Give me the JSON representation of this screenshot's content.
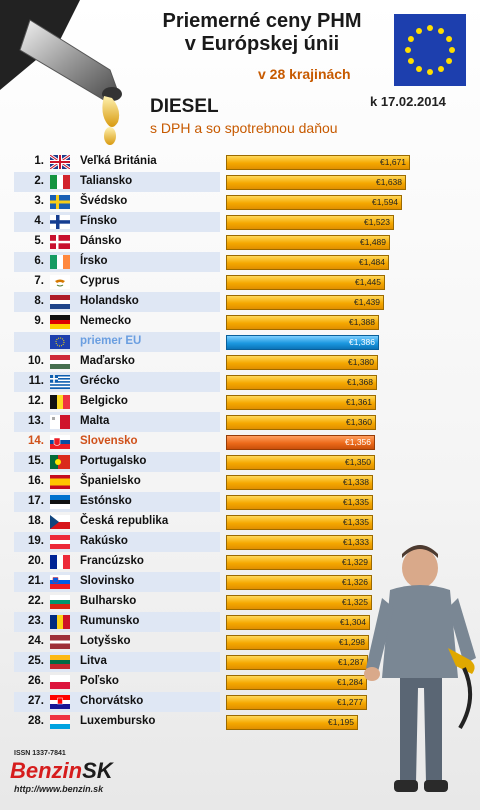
{
  "header": {
    "title_line1": "Priemerné ceny PHM",
    "title_line2": "v Európskej únii",
    "countries_note": "v 28 krajinách",
    "date": "k 17.02.2014",
    "fuel": "DIESEL",
    "fuel_note": "s DPH a so spotrebnou daňou"
  },
  "chart_data": {
    "type": "bar",
    "orientation": "horizontal",
    "xlim": [
      0,
      1.671
    ],
    "rows": [
      {
        "rank": "1.",
        "country": "Veľká Británia",
        "value": 1.671,
        "label": "€1,671",
        "flag": "uk-flag-icon"
      },
      {
        "rank": "2.",
        "country": "Taliansko",
        "value": 1.638,
        "label": "€1,638",
        "flag": "italy-flag-icon"
      },
      {
        "rank": "3.",
        "country": "Švédsko",
        "value": 1.594,
        "label": "€1,594",
        "flag": "sweden-flag-icon"
      },
      {
        "rank": "4.",
        "country": "Fínsko",
        "value": 1.523,
        "label": "€1,523",
        "flag": "finland-flag-icon"
      },
      {
        "rank": "5.",
        "country": "Dánsko",
        "value": 1.489,
        "label": "€1,489",
        "flag": "denmark-flag-icon"
      },
      {
        "rank": "6.",
        "country": "Írsko",
        "value": 1.484,
        "label": "€1,484",
        "flag": "ireland-flag-icon"
      },
      {
        "rank": "7.",
        "country": "Cyprus",
        "value": 1.445,
        "label": "€1,445",
        "flag": "cyprus-flag-icon"
      },
      {
        "rank": "8.",
        "country": "Holandsko",
        "value": 1.439,
        "label": "€1,439",
        "flag": "netherlands-flag-icon"
      },
      {
        "rank": "9.",
        "country": "Nemecko",
        "value": 1.388,
        "label": "€1,388",
        "flag": "germany-flag-icon"
      },
      {
        "rank": "",
        "country": "priemer EU",
        "value": 1.386,
        "label": "€1,386",
        "flag": "eu-flag-icon",
        "highlight": "eu"
      },
      {
        "rank": "10.",
        "country": "Maďarsko",
        "value": 1.38,
        "label": "€1,380",
        "flag": "hungary-flag-icon"
      },
      {
        "rank": "11.",
        "country": "Grécko",
        "value": 1.368,
        "label": "€1,368",
        "flag": "greece-flag-icon"
      },
      {
        "rank": "12.",
        "country": "Belgicko",
        "value": 1.361,
        "label": "€1,361",
        "flag": "belgium-flag-icon"
      },
      {
        "rank": "13.",
        "country": "Malta",
        "value": 1.36,
        "label": "€1,360",
        "flag": "malta-flag-icon"
      },
      {
        "rank": "14.",
        "country": "Slovensko",
        "value": 1.356,
        "label": "€1,356",
        "flag": "slovakia-flag-icon",
        "highlight": "sk"
      },
      {
        "rank": "15.",
        "country": "Portugalsko",
        "value": 1.35,
        "label": "€1,350",
        "flag": "portugal-flag-icon"
      },
      {
        "rank": "16.",
        "country": "Španielsko",
        "value": 1.338,
        "label": "€1,338",
        "flag": "spain-flag-icon"
      },
      {
        "rank": "17.",
        "country": "Estónsko",
        "value": 1.335,
        "label": "€1,335",
        "flag": "estonia-flag-icon"
      },
      {
        "rank": "18.",
        "country": "Česká republika",
        "value": 1.335,
        "label": "€1,335",
        "flag": "czech-flag-icon"
      },
      {
        "rank": "19.",
        "country": "Rakúsko",
        "value": 1.333,
        "label": "€1,333",
        "flag": "austria-flag-icon"
      },
      {
        "rank": "20.",
        "country": "Francúzsko",
        "value": 1.329,
        "label": "€1,329",
        "flag": "france-flag-icon"
      },
      {
        "rank": "21.",
        "country": "Slovinsko",
        "value": 1.326,
        "label": "€1,326",
        "flag": "slovenia-flag-icon"
      },
      {
        "rank": "22.",
        "country": "Bulharsko",
        "value": 1.325,
        "label": "€1,325",
        "flag": "bulgaria-flag-icon"
      },
      {
        "rank": "23.",
        "country": "Rumunsko",
        "value": 1.304,
        "label": "€1,304",
        "flag": "romania-flag-icon"
      },
      {
        "rank": "24.",
        "country": "Lotyšsko",
        "value": 1.298,
        "label": "€1,298",
        "flag": "latvia-flag-icon"
      },
      {
        "rank": "25.",
        "country": "Litva",
        "value": 1.287,
        "label": "€1,287",
        "flag": "lithuania-flag-icon"
      },
      {
        "rank": "26.",
        "country": "Poľsko",
        "value": 1.284,
        "label": "€1,284",
        "flag": "poland-flag-icon"
      },
      {
        "rank": "27.",
        "country": "Chorvátsko",
        "value": 1.277,
        "label": "€1,277",
        "flag": "croatia-flag-icon"
      },
      {
        "rank": "28.",
        "country": "Luxembursko",
        "value": 1.195,
        "label": "€1,195",
        "flag": "luxembourg-flag-icon"
      }
    ]
  },
  "footer": {
    "issn": "ISSN 1337-7841",
    "logo_part1": "Benzin",
    "logo_part2": "SK",
    "url": "http://www.benzin.sk"
  },
  "colors": {
    "bar": "#f5a800",
    "eu_bar": "#1c98e0",
    "sk_bar": "#ec6a1a",
    "accent_text": "#c75a00"
  }
}
